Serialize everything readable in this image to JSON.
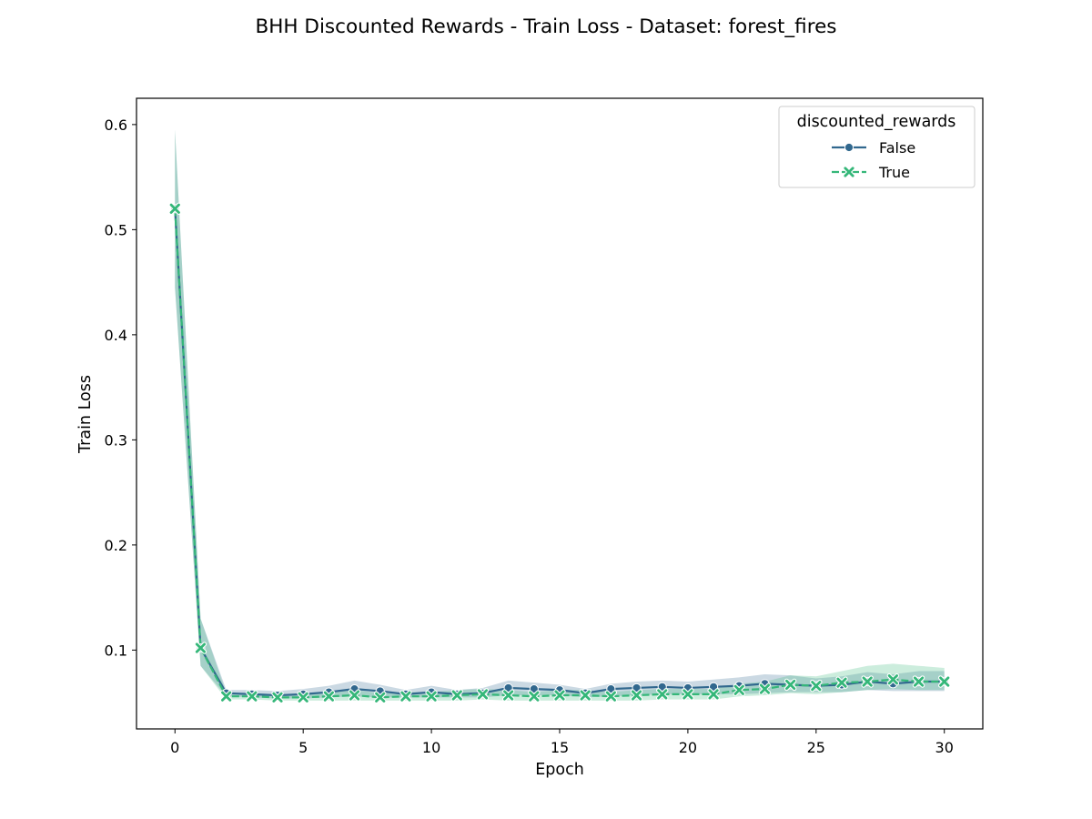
{
  "chart_data": {
    "type": "line",
    "title": "BHH Discounted Rewards - Train Loss - Dataset: forest_fires",
    "xlabel": "Epoch",
    "ylabel": "Train Loss",
    "xlim": [
      -1.5,
      31.5
    ],
    "ylim": [
      0.025,
      0.625
    ],
    "xticks": [
      0,
      5,
      10,
      15,
      20,
      25,
      30
    ],
    "yticks": [
      0.1,
      0.2,
      0.3,
      0.4,
      0.5,
      0.6
    ],
    "grid": false,
    "legend": {
      "title": "discounted_rewards",
      "placement": "top-right"
    },
    "x": [
      0,
      1,
      2,
      3,
      4,
      5,
      6,
      7,
      8,
      9,
      10,
      11,
      12,
      13,
      14,
      15,
      16,
      17,
      18,
      19,
      20,
      21,
      22,
      23,
      24,
      25,
      26,
      27,
      28,
      29,
      30
    ],
    "series": [
      {
        "name": "False",
        "color": "#31688e",
        "marker": "circle",
        "linestyle": "solid",
        "values": [
          0.52,
          0.102,
          0.059,
          0.058,
          0.057,
          0.058,
          0.06,
          0.063,
          0.061,
          0.058,
          0.06,
          0.058,
          0.059,
          0.064,
          0.063,
          0.062,
          0.059,
          0.063,
          0.064,
          0.065,
          0.064,
          0.065,
          0.066,
          0.068,
          0.067,
          0.066,
          0.067,
          0.07,
          0.068,
          0.07,
          0.07
        ],
        "ci_low": [
          0.445,
          0.085,
          0.056,
          0.055,
          0.054,
          0.054,
          0.055,
          0.056,
          0.055,
          0.055,
          0.055,
          0.055,
          0.055,
          0.057,
          0.057,
          0.057,
          0.055,
          0.056,
          0.057,
          0.058,
          0.058,
          0.058,
          0.058,
          0.059,
          0.06,
          0.06,
          0.06,
          0.062,
          0.061,
          0.061,
          0.061
        ],
        "ci_high": [
          0.595,
          0.13,
          0.062,
          0.062,
          0.061,
          0.063,
          0.066,
          0.071,
          0.067,
          0.062,
          0.066,
          0.062,
          0.064,
          0.071,
          0.069,
          0.067,
          0.063,
          0.068,
          0.07,
          0.071,
          0.07,
          0.072,
          0.074,
          0.077,
          0.076,
          0.073,
          0.075,
          0.079,
          0.077,
          0.08,
          0.08
        ]
      },
      {
        "name": "True",
        "color": "#35b779",
        "marker": "x",
        "linestyle": "dashed",
        "values": [
          0.52,
          0.102,
          0.056,
          0.056,
          0.055,
          0.055,
          0.056,
          0.057,
          0.055,
          0.056,
          0.056,
          0.057,
          0.058,
          0.057,
          0.056,
          0.057,
          0.057,
          0.056,
          0.057,
          0.058,
          0.058,
          0.058,
          0.062,
          0.063,
          0.067,
          0.066,
          0.069,
          0.07,
          0.072,
          0.07,
          0.07
        ],
        "ci_low": [
          0.445,
          0.085,
          0.053,
          0.053,
          0.052,
          0.052,
          0.052,
          0.052,
          0.052,
          0.052,
          0.052,
          0.052,
          0.053,
          0.052,
          0.052,
          0.052,
          0.052,
          0.052,
          0.052,
          0.053,
          0.053,
          0.053,
          0.056,
          0.057,
          0.059,
          0.058,
          0.06,
          0.062,
          0.063,
          0.062,
          0.062
        ],
        "ci_high": [
          0.595,
          0.13,
          0.059,
          0.059,
          0.058,
          0.058,
          0.06,
          0.062,
          0.059,
          0.06,
          0.06,
          0.062,
          0.063,
          0.062,
          0.06,
          0.062,
          0.062,
          0.06,
          0.062,
          0.063,
          0.063,
          0.063,
          0.068,
          0.07,
          0.076,
          0.075,
          0.08,
          0.085,
          0.087,
          0.085,
          0.083
        ]
      }
    ]
  }
}
